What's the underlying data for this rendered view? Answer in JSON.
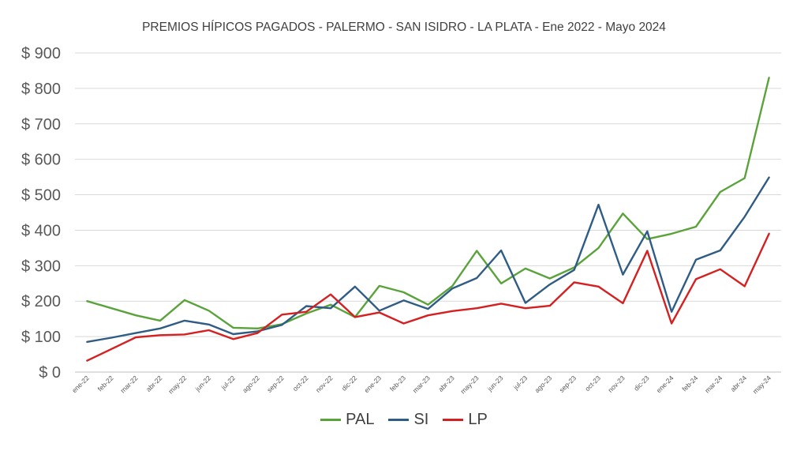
{
  "chart_data": {
    "type": "line",
    "title": "PREMIOS HÍPICOS PAGADOS  - PALERMO - SAN ISIDRO - LA PLATA  - Ene 2022 - Mayo 2024",
    "xlabel": "",
    "ylabel": "",
    "ylim": [
      0,
      900
    ],
    "yticks": [
      "$ 0",
      "$ 100",
      "$ 200",
      "$ 300",
      "$ 400",
      "$ 500",
      "$ 600",
      "$ 700",
      "$ 800",
      "$ 900"
    ],
    "grid": true,
    "legend_position": "bottom",
    "categories": [
      "ene-22",
      "feb-22",
      "mar-22",
      "abr-22",
      "may-22",
      "jun-22",
      "jul-22",
      "ago-22",
      "sep-22",
      "oct-22",
      "nov-22",
      "dic-22",
      "ene-23",
      "feb-23",
      "mar-23",
      "abr-23",
      "may-23",
      "jun-23",
      "jul-23",
      "ago-23",
      "sep-23",
      "oct-23",
      "nov-23",
      "dic-23",
      "ene-24",
      "feb-24",
      "mar-24",
      "abr-24",
      "may-24"
    ],
    "series": [
      {
        "name": "PAL",
        "color": "#5AA33A",
        "values": [
          200,
          180,
          160,
          145,
          203,
          173,
          125,
          123,
          135,
          165,
          190,
          155,
          243,
          225,
          190,
          243,
          342,
          250,
          292,
          264,
          295,
          350,
          447,
          375,
          390,
          410,
          508,
          547,
          830
        ]
      },
      {
        "name": "SI",
        "color": "#2F5C85",
        "values": [
          85,
          97,
          110,
          123,
          145,
          134,
          107,
          115,
          133,
          186,
          180,
          241,
          173,
          202,
          178,
          236,
          265,
          343,
          195,
          247,
          288,
          472,
          275,
          397,
          170,
          317,
          343,
          438,
          549
        ]
      },
      {
        "name": "LP",
        "color": "#D42020",
        "values": [
          32,
          65,
          98,
          104,
          106,
          118,
          93,
          110,
          162,
          170,
          219,
          155,
          168,
          137,
          160,
          172,
          180,
          193,
          180,
          187,
          253,
          241,
          194,
          342,
          137,
          262,
          290,
          242,
          390
        ]
      }
    ]
  }
}
